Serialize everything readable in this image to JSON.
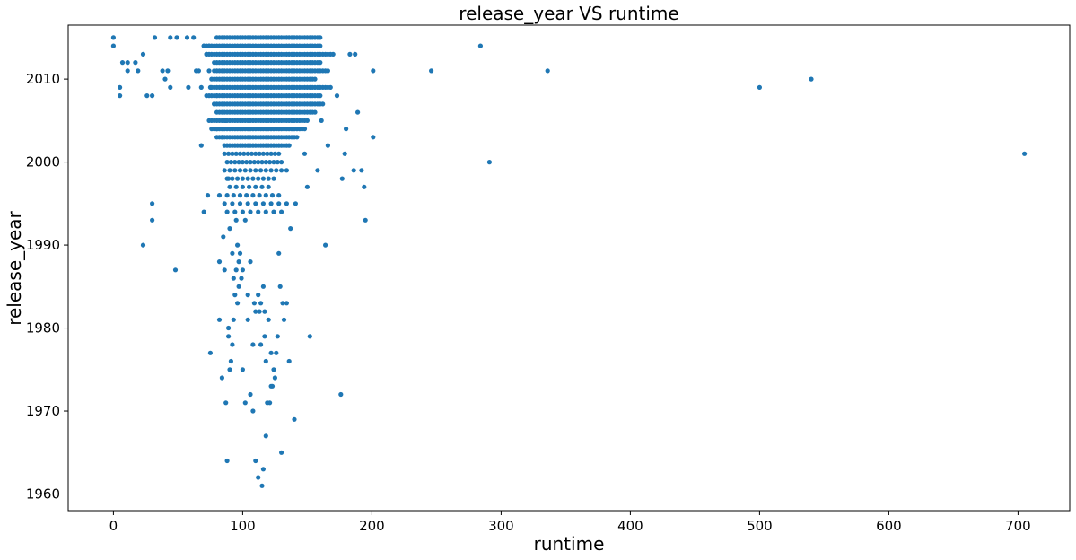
{
  "chart_data": {
    "type": "scatter",
    "title": "release_year VS runtime",
    "xlabel": "runtime",
    "ylabel": "release_year",
    "xlim": [
      -35,
      740
    ],
    "ylim": [
      1958,
      2016.5
    ],
    "xticks": [
      0,
      100,
      200,
      300,
      400,
      500,
      600,
      700
    ],
    "yticks": [
      1960,
      1970,
      1980,
      1990,
      2000,
      2010
    ],
    "grid": false,
    "legend": "none",
    "point_color": "#1f77b4",
    "points": [
      [
        0,
        2015
      ],
      [
        0,
        2014
      ],
      [
        5,
        2009
      ],
      [
        5,
        2008
      ],
      [
        7,
        2012
      ],
      [
        11,
        2012
      ],
      [
        11,
        2011
      ],
      [
        17,
        2012
      ],
      [
        19,
        2011
      ],
      [
        23,
        2013
      ],
      [
        26,
        2008
      ],
      [
        30,
        2008
      ],
      [
        32,
        2015
      ],
      [
        38,
        2011
      ],
      [
        40,
        2010
      ],
      [
        42,
        2011
      ],
      [
        44,
        2015
      ],
      [
        44,
        2009
      ],
      [
        49,
        2015
      ],
      [
        57,
        2015
      ],
      [
        58,
        2009
      ],
      [
        62,
        2015
      ],
      [
        64,
        2011
      ],
      [
        66,
        2011
      ],
      [
        68,
        2009
      ],
      [
        70,
        2014
      ],
      [
        72,
        2013
      ],
      [
        74,
        2014
      ],
      [
        74,
        2011
      ],
      [
        75,
        2009
      ],
      [
        23,
        1990
      ],
      [
        30,
        1995
      ],
      [
        30,
        1993
      ],
      [
        48,
        1987
      ],
      [
        68,
        2002
      ],
      [
        70,
        1994
      ],
      [
        73,
        1996
      ],
      [
        75,
        1977
      ],
      [
        78,
        2012
      ],
      [
        78,
        2007
      ],
      [
        80,
        2008
      ],
      [
        80,
        2004
      ],
      [
        82,
        1996
      ],
      [
        82,
        1988
      ],
      [
        82,
        1981
      ],
      [
        84,
        2003
      ],
      [
        84,
        1974
      ],
      [
        85,
        1991
      ],
      [
        86,
        1987
      ],
      [
        87,
        2005
      ],
      [
        87,
        1971
      ],
      [
        88,
        1964
      ],
      [
        89,
        1998
      ],
      [
        89,
        1980
      ],
      [
        89,
        1979
      ],
      [
        90,
        1992
      ],
      [
        90,
        1975
      ],
      [
        91,
        1976
      ],
      [
        92,
        1989
      ],
      [
        92,
        1978
      ],
      [
        93,
        1981
      ],
      [
        93,
        1986
      ],
      [
        94,
        1984
      ],
      [
        95,
        1993
      ],
      [
        95,
        1987
      ],
      [
        96,
        1990
      ],
      [
        96,
        1983
      ],
      [
        97,
        1988
      ],
      [
        97,
        1985
      ],
      [
        98,
        1989
      ],
      [
        99,
        1986
      ],
      [
        100,
        1987
      ],
      [
        100,
        1975
      ],
      [
        102,
        1993
      ],
      [
        102,
        1971
      ],
      [
        104,
        1984
      ],
      [
        104,
        1981
      ],
      [
        106,
        1988
      ],
      [
        106,
        1972
      ],
      [
        108,
        1978
      ],
      [
        108,
        1970
      ],
      [
        109,
        1983
      ],
      [
        110,
        1982
      ],
      [
        110,
        1964
      ],
      [
        112,
        1962
      ],
      [
        112,
        1984
      ],
      [
        113,
        1982
      ],
      [
        114,
        1983
      ],
      [
        114,
        1978
      ],
      [
        115,
        1961
      ],
      [
        116,
        1963
      ],
      [
        116,
        1985
      ],
      [
        117,
        1982
      ],
      [
        117,
        1979
      ],
      [
        118,
        1967
      ],
      [
        118,
        1976
      ],
      [
        119,
        1971
      ],
      [
        120,
        1981
      ],
      [
        121,
        1971
      ],
      [
        122,
        1977
      ],
      [
        122,
        1973
      ],
      [
        123,
        1973
      ],
      [
        124,
        1975
      ],
      [
        125,
        1974
      ],
      [
        126,
        1977
      ],
      [
        127,
        1979
      ],
      [
        128,
        1989
      ],
      [
        129,
        1985
      ],
      [
        130,
        1965
      ],
      [
        131,
        1983
      ],
      [
        132,
        1981
      ],
      [
        134,
        1983
      ],
      [
        136,
        1976
      ],
      [
        137,
        1992
      ],
      [
        140,
        1969
      ],
      [
        141,
        1995
      ],
      [
        150,
        1997
      ],
      [
        152,
        1979
      ],
      [
        158,
        1999
      ],
      [
        164,
        1990
      ],
      [
        176,
        1972
      ],
      [
        177,
        1998
      ],
      [
        179,
        2001
      ],
      [
        180,
        2004
      ],
      [
        186,
        1999
      ],
      [
        192,
        1999
      ],
      [
        194,
        1997
      ],
      [
        195,
        1993
      ],
      [
        201,
        2003
      ],
      [
        201,
        2011
      ],
      [
        148,
        2001
      ],
      [
        161,
        2005
      ],
      [
        166,
        2002
      ],
      [
        173,
        2008
      ],
      [
        183,
        2013
      ],
      [
        187,
        2013
      ],
      [
        189,
        2006
      ],
      [
        246,
        2011
      ],
      [
        284,
        2014
      ],
      [
        291,
        2000
      ],
      [
        336,
        2011
      ],
      [
        500,
        2009
      ],
      [
        540,
        2010
      ],
      [
        705,
        2001
      ]
    ],
    "dense_cluster": [
      {
        "year": 2015,
        "from": 80,
        "to": 160,
        "step": 2
      },
      {
        "year": 2014,
        "from": 70,
        "to": 160,
        "step": 2
      },
      {
        "year": 2013,
        "from": 72,
        "to": 170,
        "step": 2
      },
      {
        "year": 2012,
        "from": 80,
        "to": 160,
        "step": 2
      },
      {
        "year": 2011,
        "from": 78,
        "to": 166,
        "step": 2
      },
      {
        "year": 2010,
        "from": 76,
        "to": 156,
        "step": 2
      },
      {
        "year": 2009,
        "from": 76,
        "to": 168,
        "step": 2
      },
      {
        "year": 2008,
        "from": 72,
        "to": 160,
        "step": 2
      },
      {
        "year": 2007,
        "from": 78,
        "to": 162,
        "step": 2
      },
      {
        "year": 2006,
        "from": 80,
        "to": 156,
        "step": 2
      },
      {
        "year": 2005,
        "from": 74,
        "to": 150,
        "step": 2
      },
      {
        "year": 2004,
        "from": 76,
        "to": 148,
        "step": 2
      },
      {
        "year": 2003,
        "from": 80,
        "to": 142,
        "step": 2
      },
      {
        "year": 2002,
        "from": 86,
        "to": 136,
        "step": 2
      },
      {
        "year": 2001,
        "from": 86,
        "to": 130,
        "step": 3
      },
      {
        "year": 2000,
        "from": 88,
        "to": 132,
        "step": 3
      },
      {
        "year": 1999,
        "from": 86,
        "to": 136,
        "step": 4
      },
      {
        "year": 1998,
        "from": 88,
        "to": 126,
        "step": 4
      },
      {
        "year": 1997,
        "from": 90,
        "to": 122,
        "step": 5
      },
      {
        "year": 1996,
        "from": 88,
        "to": 132,
        "step": 5
      },
      {
        "year": 1995,
        "from": 86,
        "to": 136,
        "step": 6
      },
      {
        "year": 1994,
        "from": 88,
        "to": 130,
        "step": 6
      }
    ]
  }
}
